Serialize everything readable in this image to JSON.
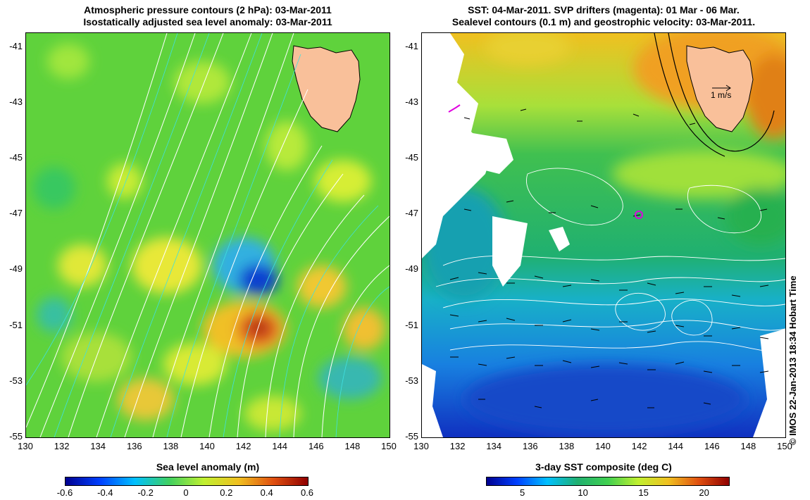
{
  "left_map": {
    "title_line1": "Atmospheric pressure contours (2 hPa): 03-Mar-2011",
    "title_line2": "Isostatically adjusted sea level anomaly: 03-Mar-2011",
    "colorbar_label": "Sea level anomaly (m)",
    "colorbar_ticks": [
      "-0.6",
      "-0.4",
      "-0.2",
      "0",
      "0.2",
      "0.4",
      "0.6"
    ],
    "colorbar_range": [
      -0.6,
      0.6
    ]
  },
  "right_map": {
    "title_line1": "SST: 04-Mar-2011. SVP drifters (magenta): 01 Mar - 06 Mar.",
    "title_line2": "Sealevel contours (0.1 m) and geostrophic velocity: 03-Mar-2011.",
    "scale_arrow_label": "1 m/s",
    "colorbar_label": "3-day SST composite (deg C)",
    "colorbar_ticks": [
      "5",
      "10",
      "15",
      "20"
    ],
    "colorbar_range": [
      2,
      22
    ]
  },
  "axes": {
    "x_ticks": [
      "130",
      "132",
      "134",
      "136",
      "138",
      "140",
      "142",
      "144",
      "146",
      "148",
      "150"
    ],
    "y_ticks": [
      "-41",
      "-43",
      "-45",
      "-47",
      "-49",
      "-51",
      "-53",
      "-55"
    ],
    "lon_range": [
      130,
      150
    ],
    "lat_range": [
      -55,
      -40.5
    ]
  },
  "copyright": "© IMOS 22-Jan-2013 18:34 Hobart Time",
  "colors": {
    "land": "#f9c09a",
    "pressure_contour": "#ffffff",
    "sealevel_contour_left": "#40e0e0",
    "drifter": "#e000e0"
  }
}
